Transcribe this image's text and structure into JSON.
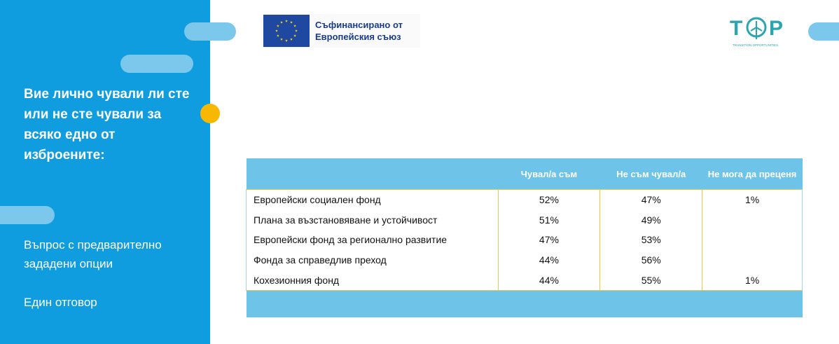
{
  "sidebar": {
    "question": "Вие лично чували ли сте или не сте чували за всяко едно от изброените:",
    "question_type": "Въпрос с предварително зададени опции",
    "answer_type": "Един отговор"
  },
  "eu_logo": {
    "line1": "Съфинансирано от",
    "line2": "Европейския съюз"
  },
  "top_logo": {
    "tagline": "TRANSITION OPPORTUNITIES"
  },
  "table": {
    "headers": [
      "",
      "Чувал/а съм",
      "Не съм чувал/а",
      "Не мога да преценя"
    ],
    "rows": [
      [
        "Европейски социален фонд",
        "52%",
        "47%",
        "1%"
      ],
      [
        "Плана за възстановяване и устойчивост",
        "51%",
        "49%",
        ""
      ],
      [
        "Европейски фонд за регионално развитие",
        "47%",
        "53%",
        ""
      ],
      [
        "Фонда за справедлив преход",
        "44%",
        "56%",
        ""
      ],
      [
        "Кохезионния фонд",
        "44%",
        "55%",
        "1%"
      ]
    ]
  },
  "colors": {
    "sidebar": "#0f9de0",
    "table_header": "#6ec3e8",
    "accent_dot": "#f8b800",
    "eu_blue": "#1f49a0",
    "eu_star": "#ffdd00"
  },
  "icons": {
    "eu_flag": "eu-flag-icon",
    "top_logo": "top-logo-icon"
  }
}
